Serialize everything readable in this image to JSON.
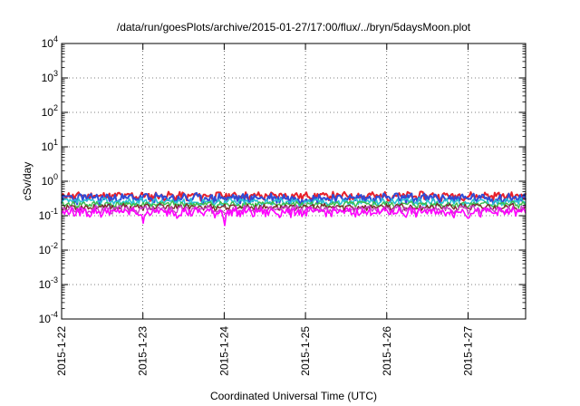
{
  "chart_data": {
    "type": "line",
    "title": "/data/run/goesPlots/archive/2015-01-27/17:00/flux/../bryn/5daysMoon.plot",
    "xlabel": "Coordinated Universal Time (UTC)",
    "ylabel": "cSv/day",
    "y_scale": "log",
    "ylim": [
      0.0001,
      10000
    ],
    "y_ticks": [
      {
        "base": "10",
        "exp": "-4",
        "value": 0.0001
      },
      {
        "base": "10",
        "exp": "-3",
        "value": 0.001
      },
      {
        "base": "10",
        "exp": "-2",
        "value": 0.01
      },
      {
        "base": "10",
        "exp": "-1",
        "value": 0.1
      },
      {
        "base": "10",
        "exp": "0",
        "value": 1
      },
      {
        "base": "10",
        "exp": "1",
        "value": 10
      },
      {
        "base": "10",
        "exp": "2",
        "value": 100
      },
      {
        "base": "10",
        "exp": "3",
        "value": 1000
      },
      {
        "base": "10",
        "exp": "4",
        "value": 10000
      }
    ],
    "x_ticks": [
      "2015-1-22",
      "2015-1-23",
      "2015-1-24",
      "2015-1-25",
      "2015-1-26",
      "2015-1-27"
    ],
    "xlim": [
      "2015-01-22T00:00",
      "2015-01-27T17:00"
    ],
    "grid": true,
    "legend": "none",
    "series": [
      {
        "color": "#e8202a",
        "width": 2,
        "base": 0.38,
        "spread": 0.09,
        "dips": [],
        "seed": 11
      },
      {
        "color": "#2f4cd6",
        "width": 2,
        "base": 0.33,
        "spread": 0.1,
        "dips": [],
        "seed": 23
      },
      {
        "color": "#29c2d6",
        "width": 1.6,
        "base": 0.255,
        "spread": 0.055,
        "dips": [],
        "seed": 37
      },
      {
        "color": "#3bbf4a",
        "width": 1.4,
        "base": 0.215,
        "spread": 0.04,
        "dips": [],
        "seed": 41
      },
      {
        "color": "#7a2a2a",
        "width": 1.4,
        "base": 0.18,
        "spread": 0.035,
        "dips": [],
        "seed": 53
      },
      {
        "color": "#c83fc8",
        "width": 1.4,
        "base": 0.155,
        "spread": 0.035,
        "dips": [],
        "seed": 67
      },
      {
        "color": "#ff00ff",
        "width": 1.6,
        "base": 0.13,
        "spread": 0.035,
        "dips": [
          {
            "x": "2015-01-23T00:05",
            "v": 0.06
          },
          {
            "x": "2015-01-24T00:05",
            "v": 0.042
          },
          {
            "x": "2015-01-27T00:05",
            "v": 0.075
          }
        ],
        "seed": 79
      }
    ]
  }
}
